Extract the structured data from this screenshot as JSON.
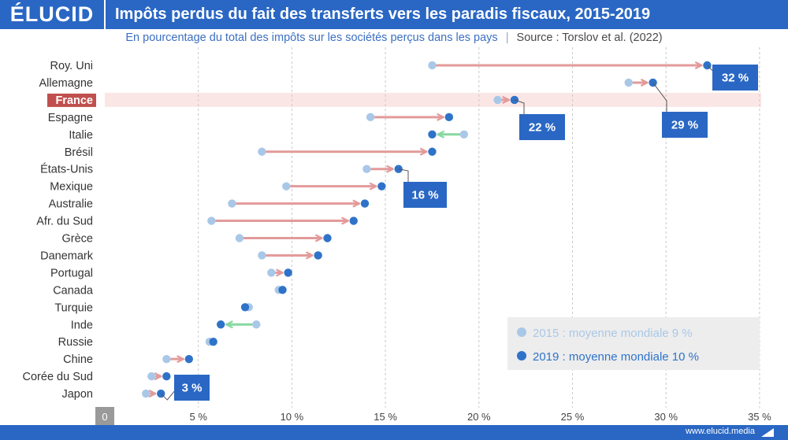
{
  "header": {
    "logo": "ÉLUCID",
    "title": "Impôts perdus du fait des transferts vers les paradis fiscaux, 2015-2019"
  },
  "subtitle": {
    "text": "En pourcentage du total des impôts sur les sociétés perçus dans les pays",
    "separator": "|",
    "source": "Source : Torslov et al. (2022)"
  },
  "footer": {
    "url": "www.elucid.media"
  },
  "colors": {
    "brand": "#2a67c4",
    "dot_2015": "#a9c8e8",
    "dot_2019": "#2f73c9",
    "increase": "#e39a9a",
    "decrease": "#86d89f",
    "highlight_bg": "#fbe6e6",
    "highlight_label": "#c0504d"
  },
  "chart_data": {
    "type": "dumbbell",
    "title": "Impôts perdus du fait des transferts vers les paradis fiscaux, 2015-2019",
    "subtitle": "En pourcentage du total des impôts sur les sociétés perçus dans les pays",
    "xlim": [
      0,
      35
    ],
    "xticks": [
      0,
      5,
      10,
      15,
      20,
      25,
      30,
      35
    ],
    "xtick_labels": [
      "0",
      "5 %",
      "10 %",
      "15 %",
      "20 %",
      "25 %",
      "30 %",
      "35 %"
    ],
    "grid": "vertical dashed",
    "highlight": "France",
    "categories": [
      "Roy. Uni",
      "Allemagne",
      "France",
      "Espagne",
      "Italie",
      "Brésil",
      "États-Unis",
      "Mexique",
      "Australie",
      "Afr. du Sud",
      "Grèce",
      "Danemark",
      "Portugal",
      "Canada",
      "Turquie",
      "Inde",
      "Russie",
      "Chine",
      "Corée du Sud",
      "Japon"
    ],
    "series": [
      {
        "name": "2015 : moyenne mondiale 9 %",
        "values": [
          17.5,
          28.0,
          21.0,
          14.2,
          19.2,
          8.4,
          14.0,
          9.7,
          6.8,
          5.7,
          7.2,
          8.4,
          8.9,
          9.3,
          7.7,
          8.1,
          5.6,
          3.3,
          2.5,
          2.2
        ]
      },
      {
        "name": "2019 : moyenne mondiale 10 %",
        "values": [
          32.2,
          29.3,
          21.9,
          18.4,
          17.5,
          17.5,
          15.7,
          14.8,
          13.9,
          13.3,
          11.9,
          11.4,
          9.8,
          9.5,
          7.5,
          6.2,
          5.8,
          4.5,
          3.3,
          3.0
        ]
      }
    ],
    "callouts": [
      {
        "category": "Roy. Uni",
        "text": "32 %"
      },
      {
        "category": "Allemagne",
        "text": "29 %"
      },
      {
        "category": "France",
        "text": "22 %"
      },
      {
        "category": "États-Unis",
        "text": "16 %"
      },
      {
        "category": "Japon",
        "text": "3 %"
      }
    ],
    "legend": {
      "position": "bottom-right",
      "items": [
        "2015 : moyenne mondiale 9 %",
        "2019 : moyenne mondiale 10 %"
      ]
    }
  }
}
